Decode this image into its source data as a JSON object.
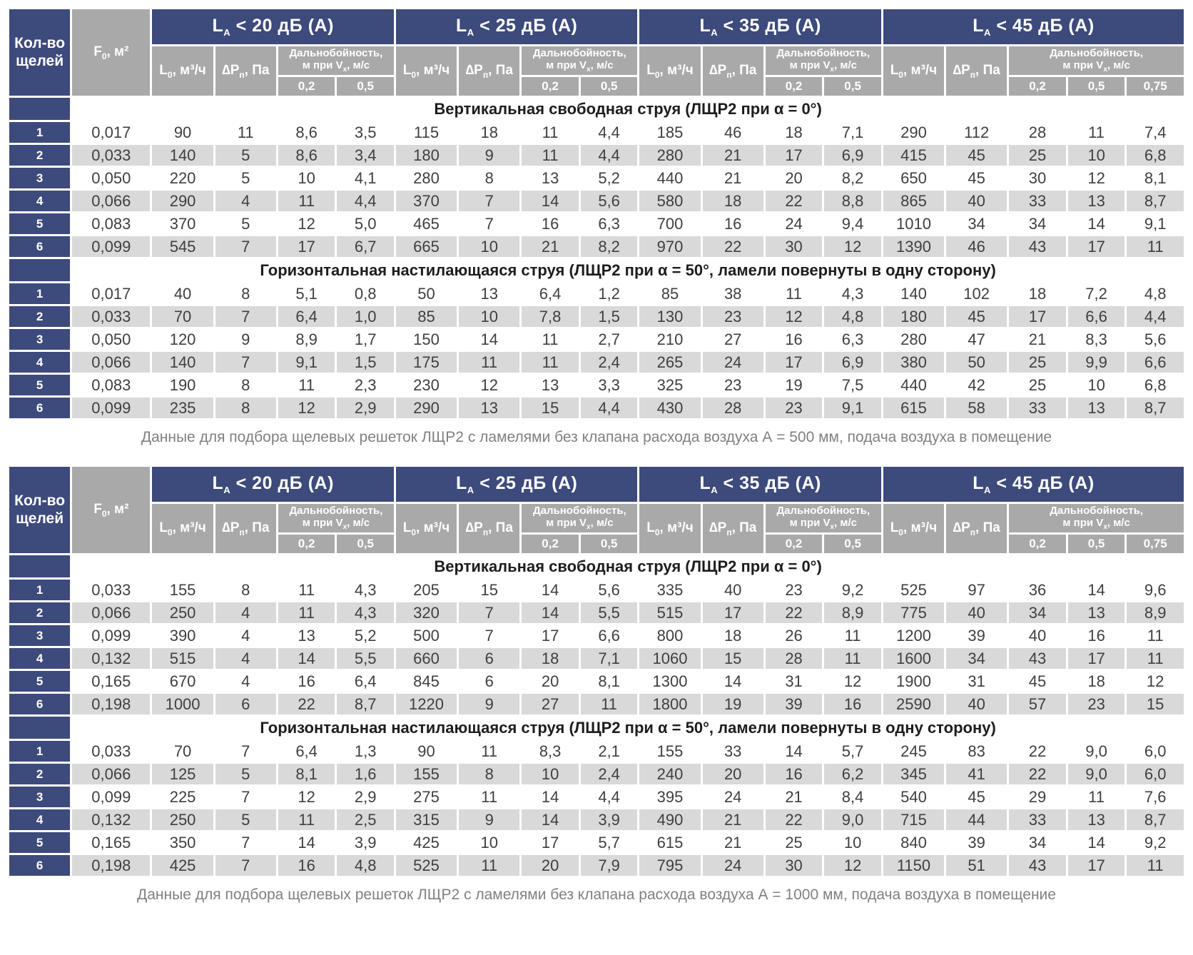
{
  "colors": {
    "navy": "#3d4a7c",
    "header_gray": "#a9a9a9",
    "row_alt": "#d9d9d9",
    "data_text": "#3f3f3f",
    "caption_gray": "#808080"
  },
  "header": {
    "slots_label": "Кол-во щелей",
    "f0": {
      "main": "F",
      "sub": "0",
      "rest": ", м²"
    },
    "flow": {
      "main": "L",
      "sub": "0",
      "rest": ", м³/ч"
    },
    "dp": {
      "main": "∆P",
      "sub": "п",
      "rest": ", Па"
    },
    "range_line1": "Дальнобойность,",
    "range_line2": {
      "main": "м при V",
      "sub": "x",
      "rest": ", м/с"
    },
    "groups": [
      {
        "title": {
          "main": "L",
          "sub": "A",
          "rest": " < 20 дБ (A)"
        },
        "velocities": [
          "0,2",
          "0,5"
        ]
      },
      {
        "title": {
          "main": "L",
          "sub": "A",
          "rest": " < 25 дБ (A)"
        },
        "velocities": [
          "0,2",
          "0,5"
        ]
      },
      {
        "title": {
          "main": "L",
          "sub": "A",
          "rest": " < 35 дБ (A)"
        },
        "velocities": [
          "0,2",
          "0,5"
        ]
      },
      {
        "title": {
          "main": "L",
          "sub": "A",
          "rest": " < 45 дБ (A)"
        },
        "velocities": [
          "0,2",
          "0,5",
          "0,75"
        ]
      }
    ]
  },
  "tables": [
    {
      "caption": "Данные для подбора щелевых решеток ЛЩР2 с ламелями без клапана расхода воздуха А = 500 мм, подача воздуха в помещение",
      "sections": [
        {
          "title": "Вертикальная свободная струя (ЛЩР2 при α = 0°)",
          "rows": [
            {
              "slots": "1",
              "f0": "0,017",
              "values": [
                "90",
                "11",
                "8,6",
                "3,5",
                "115",
                "18",
                "11",
                "4,4",
                "185",
                "46",
                "18",
                "7,1",
                "290",
                "112",
                "28",
                "11",
                "7,4"
              ]
            },
            {
              "slots": "2",
              "f0": "0,033",
              "values": [
                "140",
                "5",
                "8,6",
                "3,4",
                "180",
                "9",
                "11",
                "4,4",
                "280",
                "21",
                "17",
                "6,9",
                "415",
                "45",
                "25",
                "10",
                "6,8"
              ]
            },
            {
              "slots": "3",
              "f0": "0,050",
              "values": [
                "220",
                "5",
                "10",
                "4,1",
                "280",
                "8",
                "13",
                "5,2",
                "440",
                "21",
                "20",
                "8,2",
                "650",
                "45",
                "30",
                "12",
                "8,1"
              ]
            },
            {
              "slots": "4",
              "f0": "0,066",
              "values": [
                "290",
                "4",
                "11",
                "4,4",
                "370",
                "7",
                "14",
                "5,6",
                "580",
                "18",
                "22",
                "8,8",
                "865",
                "40",
                "33",
                "13",
                "8,7"
              ]
            },
            {
              "slots": "5",
              "f0": "0,083",
              "values": [
                "370",
                "5",
                "12",
                "5,0",
                "465",
                "7",
                "16",
                "6,3",
                "700",
                "16",
                "24",
                "9,4",
                "1010",
                "34",
                "34",
                "14",
                "9,1"
              ]
            },
            {
              "slots": "6",
              "f0": "0,099",
              "values": [
                "545",
                "7",
                "17",
                "6,7",
                "665",
                "10",
                "21",
                "8,2",
                "970",
                "22",
                "30",
                "12",
                "1390",
                "46",
                "43",
                "17",
                "11"
              ]
            }
          ]
        },
        {
          "title": "Горизонтальная настилающаяся струя (ЛЩР2 при α = 50°, ламели повернуты в одну сторону)",
          "rows": [
            {
              "slots": "1",
              "f0": "0,017",
              "values": [
                "40",
                "8",
                "5,1",
                "0,8",
                "50",
                "13",
                "6,4",
                "1,2",
                "85",
                "38",
                "11",
                "4,3",
                "140",
                "102",
                "18",
                "7,2",
                "4,8"
              ]
            },
            {
              "slots": "2",
              "f0": "0,033",
              "values": [
                "70",
                "7",
                "6,4",
                "1,0",
                "85",
                "10",
                "7,8",
                "1,5",
                "130",
                "23",
                "12",
                "4,8",
                "180",
                "45",
                "17",
                "6,6",
                "4,4"
              ]
            },
            {
              "slots": "3",
              "f0": "0,050",
              "values": [
                "120",
                "9",
                "8,9",
                "1,7",
                "150",
                "14",
                "11",
                "2,7",
                "210",
                "27",
                "16",
                "6,3",
                "280",
                "47",
                "21",
                "8,3",
                "5,6"
              ]
            },
            {
              "slots": "4",
              "f0": "0,066",
              "values": [
                "140",
                "7",
                "9,1",
                "1,5",
                "175",
                "11",
                "11",
                "2,4",
                "265",
                "24",
                "17",
                "6,9",
                "380",
                "50",
                "25",
                "9,9",
                "6,6"
              ]
            },
            {
              "slots": "5",
              "f0": "0,083",
              "values": [
                "190",
                "8",
                "11",
                "2,3",
                "230",
                "12",
                "13",
                "3,3",
                "325",
                "23",
                "19",
                "7,5",
                "440",
                "42",
                "25",
                "10",
                "6,8"
              ]
            },
            {
              "slots": "6",
              "f0": "0,099",
              "values": [
                "235",
                "8",
                "12",
                "2,9",
                "290",
                "13",
                "15",
                "4,4",
                "430",
                "28",
                "23",
                "9,1",
                "615",
                "58",
                "33",
                "13",
                "8,7"
              ]
            }
          ]
        }
      ]
    },
    {
      "caption": "Данные для подбора щелевых решеток ЛЩР2 с ламелями без клапана расхода воздуха А = 1000 мм, подача воздуха в помещение",
      "sections": [
        {
          "title": "Вертикальная свободная струя (ЛЩР2 при α = 0°)",
          "rows": [
            {
              "slots": "1",
              "f0": "0,033",
              "values": [
                "155",
                "8",
                "11",
                "4,3",
                "205",
                "15",
                "14",
                "5,6",
                "335",
                "40",
                "23",
                "9,2",
                "525",
                "97",
                "36",
                "14",
                "9,6"
              ]
            },
            {
              "slots": "2",
              "f0": "0,066",
              "values": [
                "250",
                "4",
                "11",
                "4,3",
                "320",
                "7",
                "14",
                "5,5",
                "515",
                "17",
                "22",
                "8,9",
                "775",
                "40",
                "34",
                "13",
                "8,9"
              ]
            },
            {
              "slots": "3",
              "f0": "0,099",
              "values": [
                "390",
                "4",
                "13",
                "5,2",
                "500",
                "7",
                "17",
                "6,6",
                "800",
                "18",
                "26",
                "11",
                "1200",
                "39",
                "40",
                "16",
                "11"
              ]
            },
            {
              "slots": "4",
              "f0": "0,132",
              "values": [
                "515",
                "4",
                "14",
                "5,5",
                "660",
                "6",
                "18",
                "7,1",
                "1060",
                "15",
                "28",
                "11",
                "1600",
                "34",
                "43",
                "17",
                "11"
              ]
            },
            {
              "slots": "5",
              "f0": "0,165",
              "values": [
                "670",
                "4",
                "16",
                "6,4",
                "845",
                "6",
                "20",
                "8,1",
                "1300",
                "14",
                "31",
                "12",
                "1900",
                "31",
                "45",
                "18",
                "12"
              ]
            },
            {
              "slots": "6",
              "f0": "0,198",
              "values": [
                "1000",
                "6",
                "22",
                "8,7",
                "1220",
                "9",
                "27",
                "11",
                "1800",
                "19",
                "39",
                "16",
                "2590",
                "40",
                "57",
                "23",
                "15"
              ]
            }
          ]
        },
        {
          "title": "Горизонтальная настилающаяся струя (ЛЩР2 при α = 50°, ламели повернуты в одну сторону)",
          "rows": [
            {
              "slots": "1",
              "f0": "0,033",
              "values": [
                "70",
                "7",
                "6,4",
                "1,3",
                "90",
                "11",
                "8,3",
                "2,1",
                "155",
                "33",
                "14",
                "5,7",
                "245",
                "83",
                "22",
                "9,0",
                "6,0"
              ]
            },
            {
              "slots": "2",
              "f0": "0,066",
              "values": [
                "125",
                "5",
                "8,1",
                "1,6",
                "155",
                "8",
                "10",
                "2,4",
                "240",
                "20",
                "16",
                "6,2",
                "345",
                "41",
                "22",
                "9,0",
                "6,0"
              ]
            },
            {
              "slots": "3",
              "f0": "0,099",
              "values": [
                "225",
                "7",
                "12",
                "2,9",
                "275",
                "11",
                "14",
                "4,4",
                "395",
                "24",
                "21",
                "8,4",
                "540",
                "45",
                "29",
                "11",
                "7,6"
              ]
            },
            {
              "slots": "4",
              "f0": "0,132",
              "values": [
                "250",
                "5",
                "11",
                "2,5",
                "315",
                "9",
                "14",
                "3,9",
                "490",
                "21",
                "22",
                "9,0",
                "715",
                "44",
                "33",
                "13",
                "8,7"
              ]
            },
            {
              "slots": "5",
              "f0": "0,165",
              "values": [
                "350",
                "7",
                "14",
                "3,9",
                "425",
                "10",
                "17",
                "5,7",
                "615",
                "21",
                "25",
                "10",
                "840",
                "39",
                "34",
                "14",
                "9,2"
              ]
            },
            {
              "slots": "6",
              "f0": "0,198",
              "values": [
                "425",
                "7",
                "16",
                "4,8",
                "525",
                "11",
                "20",
                "7,9",
                "795",
                "24",
                "30",
                "12",
                "1150",
                "51",
                "43",
                "17",
                "11"
              ]
            }
          ]
        }
      ]
    }
  ]
}
